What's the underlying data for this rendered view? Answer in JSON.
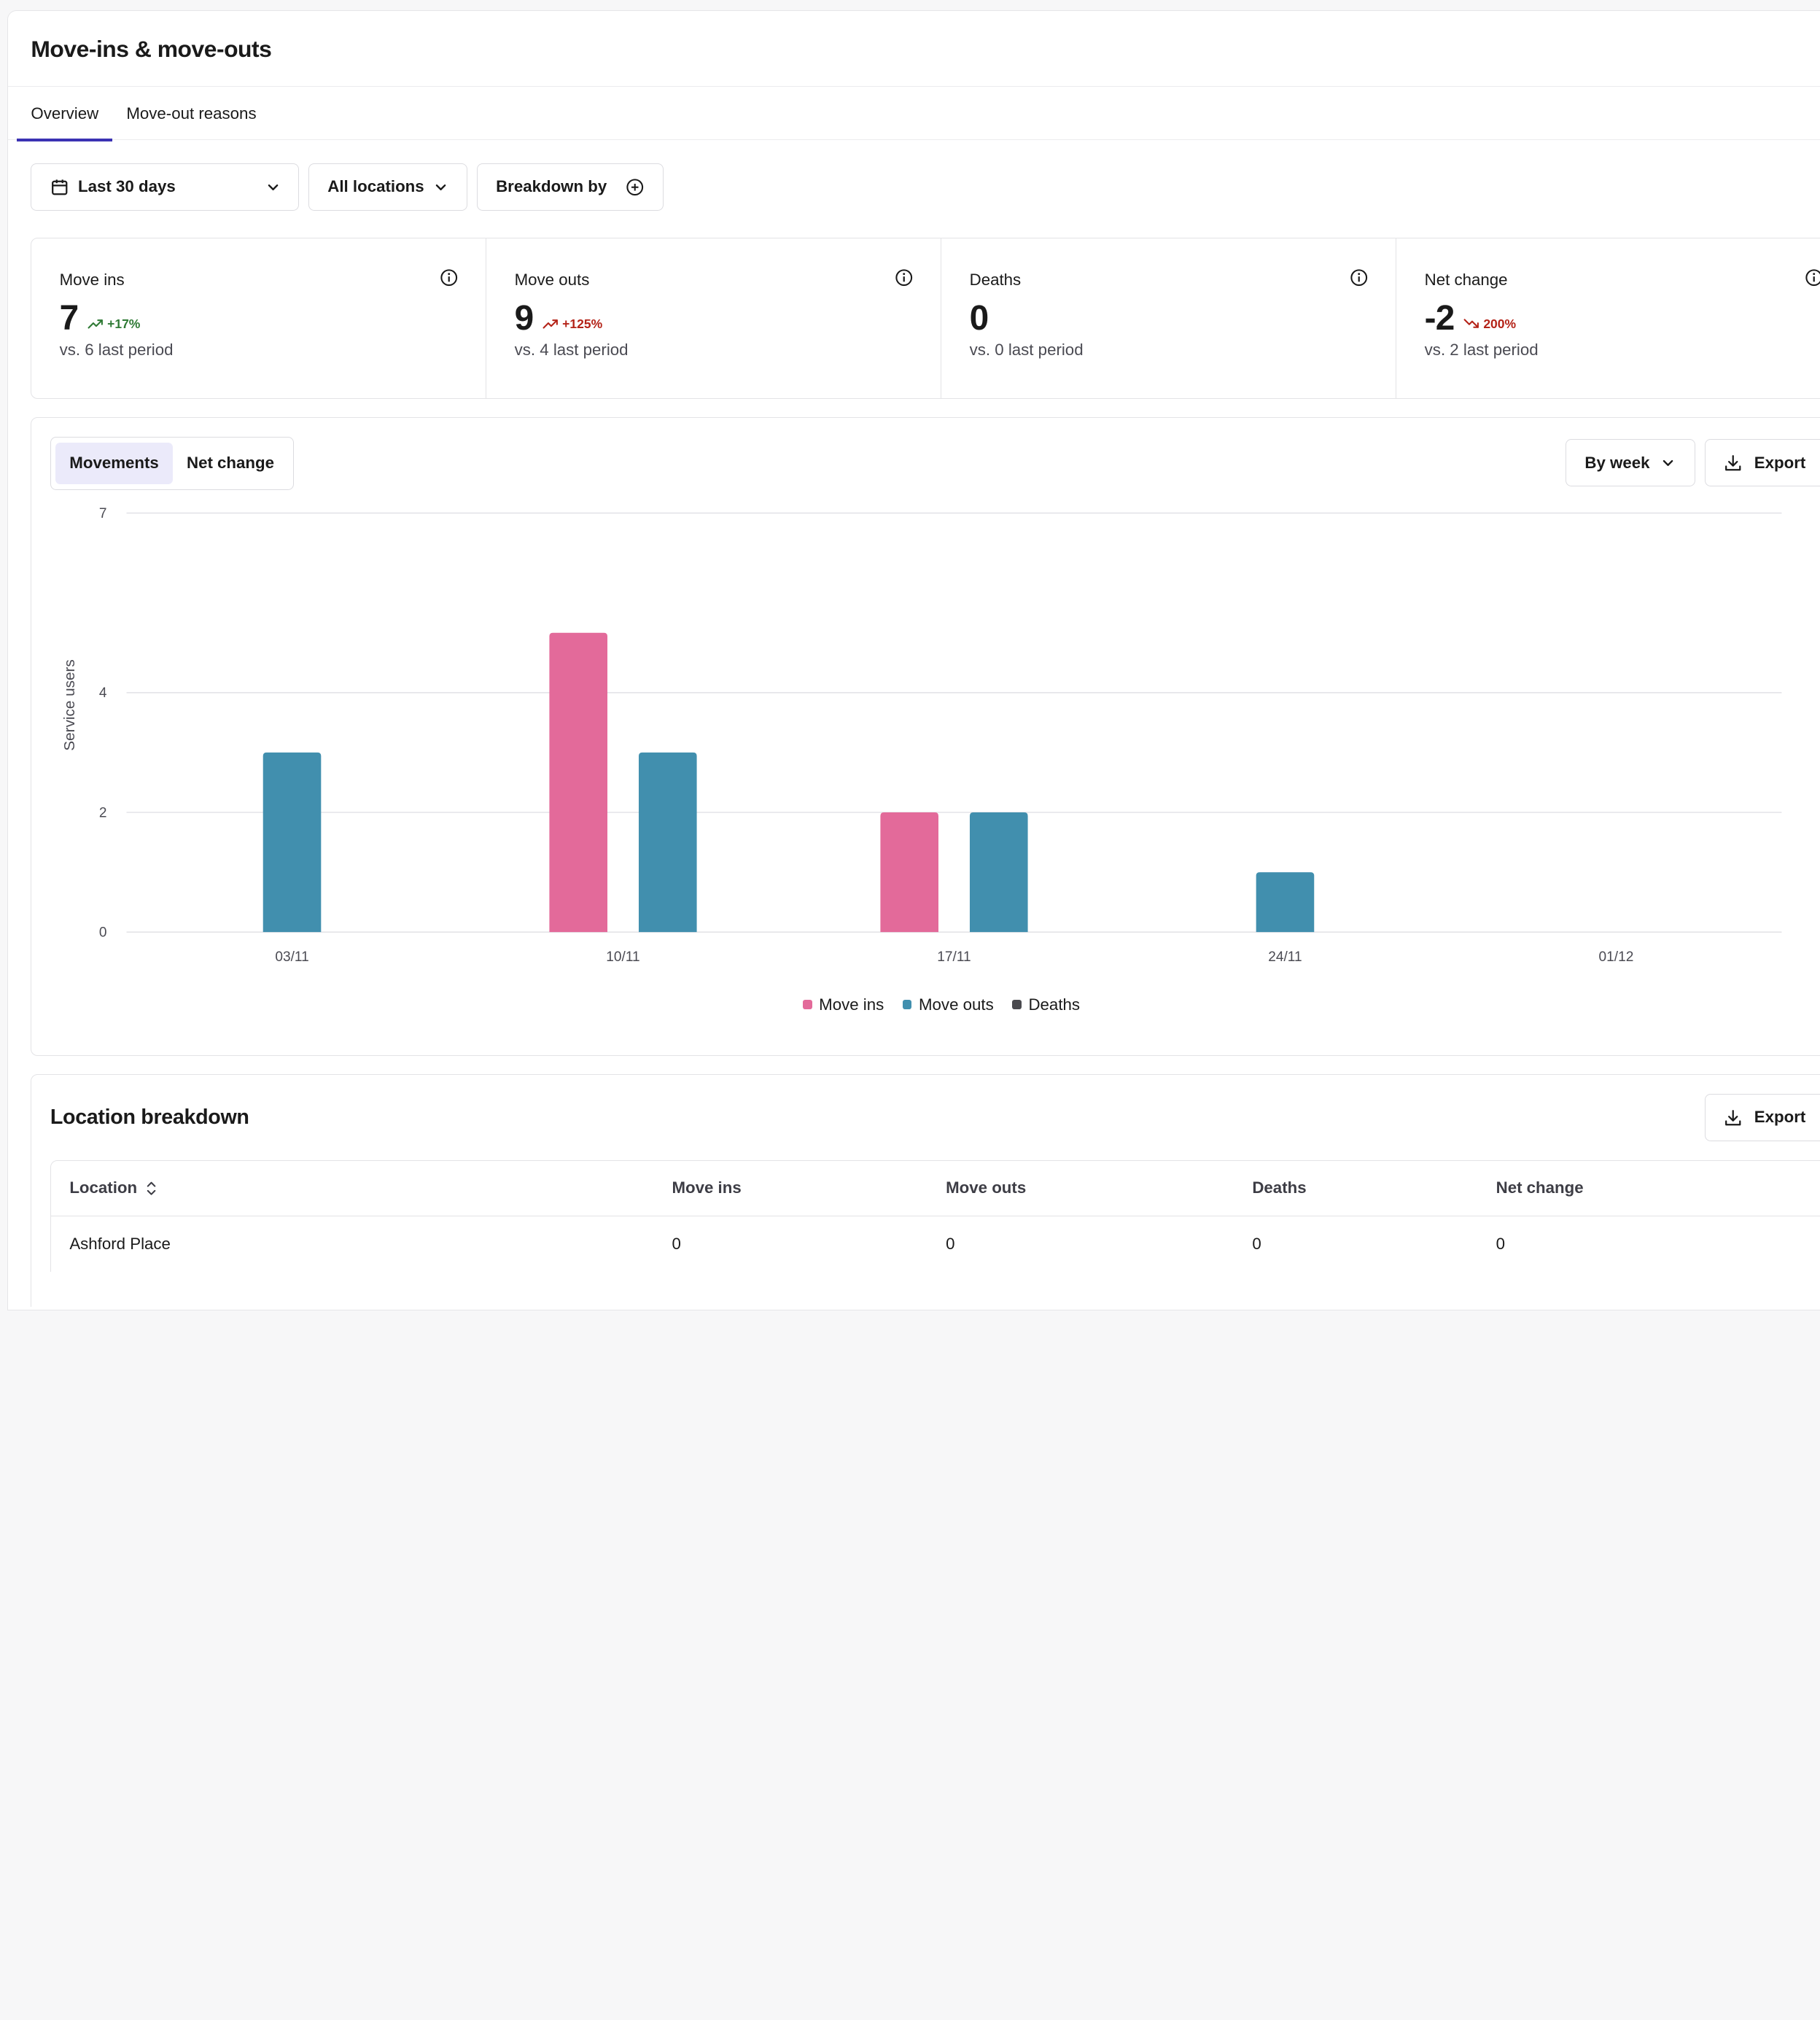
{
  "page": {
    "title": "Move-ins & move-outs"
  },
  "tabs": [
    {
      "label": "Overview",
      "active": true
    },
    {
      "label": "Move-out reasons",
      "active": false
    }
  ],
  "filters": {
    "date_range": "Last 30 days",
    "locations": "All locations",
    "breakdown": "Breakdown by"
  },
  "stats": [
    {
      "label": "Move ins",
      "value": "7",
      "delta": "+17%",
      "trend": "up",
      "comparison": "vs. 6 last period"
    },
    {
      "label": "Move outs",
      "value": "9",
      "delta": "+125%",
      "trend": "up-bad",
      "comparison": "vs. 4 last period"
    },
    {
      "label": "Deaths",
      "value": "0",
      "delta": "",
      "trend": "none",
      "comparison": "vs. 0 last period"
    },
    {
      "label": "Net change",
      "value": "-2",
      "delta": "200%",
      "trend": "down",
      "comparison": "vs. 2 last period"
    }
  ],
  "chart_controls": {
    "segments": [
      {
        "label": "Movements",
        "active": true
      },
      {
        "label": "Net change",
        "active": false
      }
    ],
    "interval": "By week",
    "export_label": "Export"
  },
  "colors": {
    "move_ins": "#e36a9a",
    "move_outs": "#418fae",
    "deaths": "#4a4a4f",
    "positive": "#2f7a35",
    "negative": "#b42318",
    "accent": "#3b32b3"
  },
  "chart_data": {
    "type": "bar",
    "categories": [
      "03/11",
      "10/11",
      "17/11",
      "24/11",
      "01/12"
    ],
    "series": [
      {
        "name": "Move ins",
        "values": [
          0,
          5,
          2,
          0,
          0
        ]
      },
      {
        "name": "Move outs",
        "values": [
          3,
          3,
          2,
          1,
          0
        ]
      },
      {
        "name": "Deaths",
        "values": [
          0,
          0,
          0,
          0,
          0
        ]
      }
    ],
    "ylabel": "Service users",
    "xlabel": "",
    "yticks": [
      0,
      2,
      4,
      7
    ],
    "ylim": [
      0,
      7
    ],
    "grid": true,
    "legend": "bottom-center"
  },
  "location_breakdown": {
    "title": "Location breakdown",
    "export_label": "Export",
    "columns": [
      "Location",
      "Move ins",
      "Move outs",
      "Deaths",
      "Net change"
    ],
    "rows": [
      [
        "Ashford Place",
        "0",
        "0",
        "0",
        "0"
      ]
    ]
  }
}
